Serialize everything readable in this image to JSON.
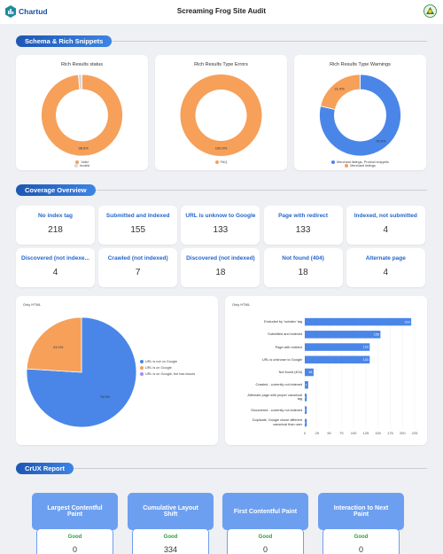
{
  "header": {
    "logo": "Chartud",
    "title": "Screaming Frog Site Audit"
  },
  "sections": [
    "Schema & Rich Snippets",
    "Coverage Overview",
    "CrUX Report"
  ],
  "coverage": [
    {
      "label": "No index tag",
      "value": 218
    },
    {
      "label": "Submitted and Indexed",
      "value": 155
    },
    {
      "label": "URL is unknow to Google",
      "value": 133
    },
    {
      "label": "Page with redirect",
      "value": 133
    },
    {
      "label": "Indexed, not submitted",
      "value": 4
    },
    {
      "label": "Discovered (not indexe...",
      "value": 4
    },
    {
      "label": "Crawled (not indexed)",
      "value": 7
    },
    {
      "label": "Discovered (not indexed)",
      "value": 18
    },
    {
      "label": "Not found (404)",
      "value": 18
    },
    {
      "label": "Alternate page",
      "value": 4
    }
  ],
  "crux": [
    {
      "title": "Largest Contentful Paint",
      "status": "Good",
      "value": 0
    },
    {
      "title": "Cumulative Layout Shift",
      "status": "Good",
      "value": 334
    },
    {
      "title": "First Contentful Paint",
      "status": "Good",
      "value": 0
    },
    {
      "title": "Interaction to Next Paint",
      "status": "Good",
      "value": 0
    }
  ],
  "chart_data": [
    {
      "type": "pie",
      "donut": true,
      "title": "Rich Results status",
      "categories": [
        "Valid",
        "Invalid"
      ],
      "values": [
        98.6,
        1.4
      ],
      "value_labels": [
        "98.6%",
        null
      ],
      "colors": [
        "#f6a05a",
        "#d9d9d9"
      ]
    },
    {
      "type": "pie",
      "donut": true,
      "title": "Rich Results Type Errors",
      "categories": [
        "FAQ"
      ],
      "values": [
        100
      ],
      "value_labels": [
        "100.0%"
      ],
      "colors": [
        "#f6a05a"
      ]
    },
    {
      "type": "pie",
      "donut": true,
      "title": "Rich Results Type Warnings",
      "categories": [
        "Merchant listings, Product snippets",
        "Merchant listings"
      ],
      "values": [
        78.6,
        21.4
      ],
      "value_labels": [
        "78.6%",
        "21.4%"
      ],
      "colors": [
        "#4a86e8",
        "#f6a05a"
      ]
    },
    {
      "type": "pie",
      "donut": false,
      "note": "Only HTML",
      "categories": [
        "URL is not on Google",
        "URL is on Google",
        "URL is on Google, but has issues"
      ],
      "values": [
        76.0,
        24.0,
        0
      ],
      "value_labels": [
        "76.0%",
        "24.0%",
        null
      ],
      "colors": [
        "#4a86e8",
        "#f6a05a",
        "#a78bfa"
      ]
    },
    {
      "type": "bar",
      "horizontal": true,
      "note": "Only HTML",
      "categories": [
        "Excluded by 'noindex' tag",
        "Submitted and indexed",
        "Page with redirect",
        "URL is unknown to Google",
        "Not found (404)",
        "Crawled - currently not indexed",
        "Alternate page with proper canonical tag",
        "Discovered - currently not indexed",
        "Duplicate, Google chose different canonical than user"
      ],
      "values": [
        218,
        155,
        133,
        133,
        18,
        7,
        4,
        4,
        4
      ],
      "color": "#4a86e8",
      "xlim": [
        0,
        225
      ],
      "xticks": [
        0,
        25,
        50,
        75,
        100,
        125,
        150,
        175,
        200,
        225
      ]
    }
  ]
}
